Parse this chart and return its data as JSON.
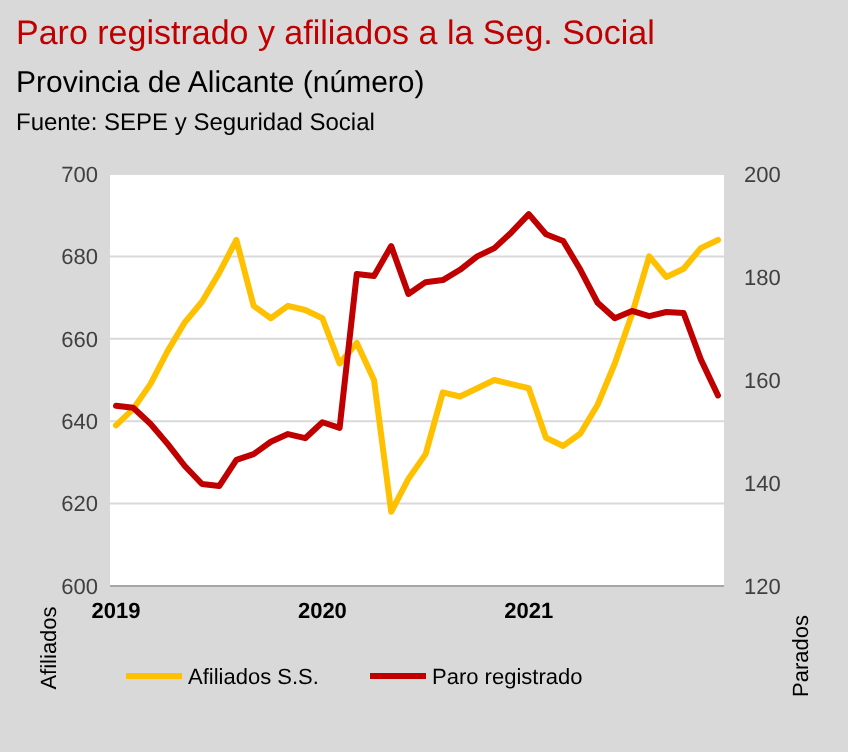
{
  "chart_data": {
    "type": "line",
    "title": "Paro registrado y afiliados a la Seg. Social",
    "subtitle": "Provincia de Alicante (número)",
    "annotations": [
      "Fuente: SEPE y Seguridad Social"
    ],
    "ylabel": "Afiliados",
    "y2label": "Parados",
    "categories": [
      "2019",
      null,
      null,
      null,
      null,
      null,
      null,
      null,
      null,
      null,
      null,
      null,
      "2020",
      null,
      null,
      null,
      null,
      null,
      null,
      null,
      null,
      null,
      null,
      null,
      "2021",
      null,
      null,
      null,
      null,
      null,
      null,
      null,
      null,
      null,
      null,
      null
    ],
    "series": [
      {
        "name": "Afiliados S.S.",
        "color": "#ffc000",
        "values": [
          639,
          643,
          649,
          657,
          664,
          669,
          676,
          684,
          668,
          665,
          668,
          667,
          665,
          654,
          659,
          650,
          618,
          626,
          632,
          647,
          646,
          648,
          650,
          649,
          648,
          636,
          634,
          637,
          644,
          654,
          666,
          680,
          675,
          677,
          682,
          684
        ]
      },
      {
        "name": "Paro registrado",
        "color": "#c00000",
        "axis": "y2",
        "values": [
          155,
          154.6,
          151.5,
          147.6,
          143.3,
          139.8,
          139.4,
          144.5,
          145.6,
          148,
          149.5,
          148.7,
          151.8,
          150.7,
          180.6,
          180.2,
          186,
          176.7,
          179,
          179.4,
          181.4,
          184,
          185.6,
          188.7,
          192.2,
          188.3,
          187,
          181.4,
          175,
          172,
          173.4,
          172.4,
          173.2,
          173,
          164,
          157
        ]
      }
    ],
    "ylim": [
      600,
      700
    ],
    "yticks": [
      600,
      620,
      640,
      660,
      680,
      700
    ],
    "y2lim": [
      120,
      200
    ],
    "y2ticks": [
      120,
      140,
      160,
      180,
      200
    ],
    "grid": "y",
    "legend": "bottom",
    "line_style": "solid"
  }
}
